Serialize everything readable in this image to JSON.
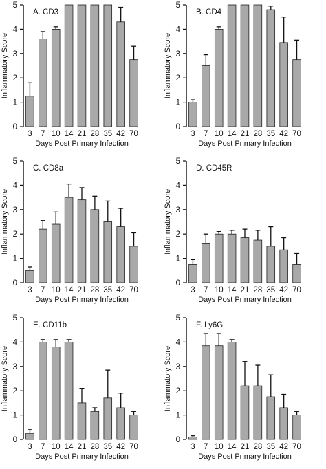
{
  "figure": {
    "ylabel": "Inflammatory Score",
    "xlabel": "Days Post Primary Infection"
  },
  "chart_data": [
    {
      "type": "bar",
      "title": "A.  CD3",
      "categories": [
        "3",
        "7",
        "10",
        "14",
        "21",
        "28",
        "35",
        "42",
        "70"
      ],
      "values": [
        1.25,
        3.6,
        4.0,
        5.0,
        5.0,
        5.0,
        5.0,
        4.3,
        2.75
      ],
      "errors": [
        0.55,
        0.3,
        0.1,
        0,
        0,
        0,
        0,
        0.6,
        0.55
      ],
      "xlabel": "Days Post Primary Infection",
      "ylabel": "Inflammatory Score",
      "ylim": [
        0,
        5
      ],
      "yticks": [
        "0",
        "1",
        "2",
        "3",
        "4",
        "5"
      ]
    },
    {
      "type": "bar",
      "title": "B.  CD4",
      "categories": [
        "3",
        "7",
        "10",
        "14",
        "21",
        "28",
        "35",
        "42",
        "70"
      ],
      "values": [
        1.0,
        2.5,
        4.0,
        5.0,
        5.0,
        5.0,
        4.8,
        3.45,
        2.75
      ],
      "errors": [
        0.1,
        0.45,
        0.1,
        0,
        0,
        0,
        0.15,
        1.05,
        0.8
      ],
      "xlabel": "Days Post Primary Infection",
      "ylabel": "Inflammatory Score",
      "ylim": [
        0,
        5
      ],
      "yticks": [
        "0",
        "1",
        "2",
        "3",
        "4",
        "5"
      ]
    },
    {
      "type": "bar",
      "title": "C.  CD8a",
      "categories": [
        "3",
        "7",
        "10",
        "14",
        "21",
        "28",
        "35",
        "42",
        "70"
      ],
      "values": [
        0.5,
        2.2,
        2.4,
        3.5,
        3.4,
        3.0,
        2.5,
        2.3,
        1.5
      ],
      "errors": [
        0.15,
        0.35,
        0.5,
        0.55,
        0.5,
        0.55,
        0.85,
        0.75,
        0.55
      ],
      "xlabel": "Days Post Primary Infection",
      "ylabel": "Inflammatory Score",
      "ylim": [
        0,
        5
      ],
      "yticks": [
        "0",
        "1",
        "2",
        "3",
        "4",
        "5"
      ]
    },
    {
      "type": "bar",
      "title": "D.  CD45R",
      "categories": [
        "3",
        "7",
        "10",
        "14",
        "21",
        "28",
        "35",
        "42",
        "70"
      ],
      "values": [
        0.75,
        1.6,
        2.0,
        2.0,
        1.85,
        1.75,
        1.5,
        1.35,
        0.75
      ],
      "errors": [
        0.2,
        0.4,
        0.1,
        0.15,
        0.35,
        0.4,
        0.8,
        0.5,
        0.45
      ],
      "xlabel": "Days Post Primary Infection",
      "ylabel": "Inflammatory Score",
      "ylim": [
        0,
        5
      ],
      "yticks": [
        "0",
        "1",
        "2",
        "3",
        "4",
        "5"
      ]
    },
    {
      "type": "bar",
      "title": "E.  CD11b",
      "categories": [
        "3",
        "7",
        "10",
        "14",
        "21",
        "28",
        "35",
        "42",
        "70"
      ],
      "values": [
        0.25,
        4.0,
        3.8,
        4.0,
        1.5,
        1.15,
        1.7,
        1.3,
        1.0
      ],
      "errors": [
        0.15,
        0.1,
        0.3,
        0.1,
        0.6,
        0.15,
        1.15,
        0.6,
        0.15
      ],
      "xlabel": "Days Post Primary Infection",
      "ylabel": "Inflammatory Score",
      "ylim": [
        0,
        5
      ],
      "yticks": [
        "0",
        "1",
        "2",
        "3",
        "4",
        "5"
      ]
    },
    {
      "type": "bar",
      "title": "F.  Ly6G",
      "categories": [
        "3",
        "7",
        "10",
        "14",
        "21",
        "28",
        "35",
        "42",
        "70"
      ],
      "values": [
        0.1,
        3.85,
        3.85,
        4.0,
        2.2,
        2.2,
        1.75,
        1.3,
        1.0
      ],
      "errors": [
        0.05,
        0.5,
        0.5,
        0.1,
        1.0,
        0.85,
        0.9,
        0.55,
        0.15
      ],
      "xlabel": "Days Post Primary Infection",
      "ylabel": "Inflammatory Score",
      "ylim": [
        0,
        5
      ],
      "yticks": [
        "0",
        "1",
        "2",
        "3",
        "4",
        "5"
      ]
    }
  ]
}
